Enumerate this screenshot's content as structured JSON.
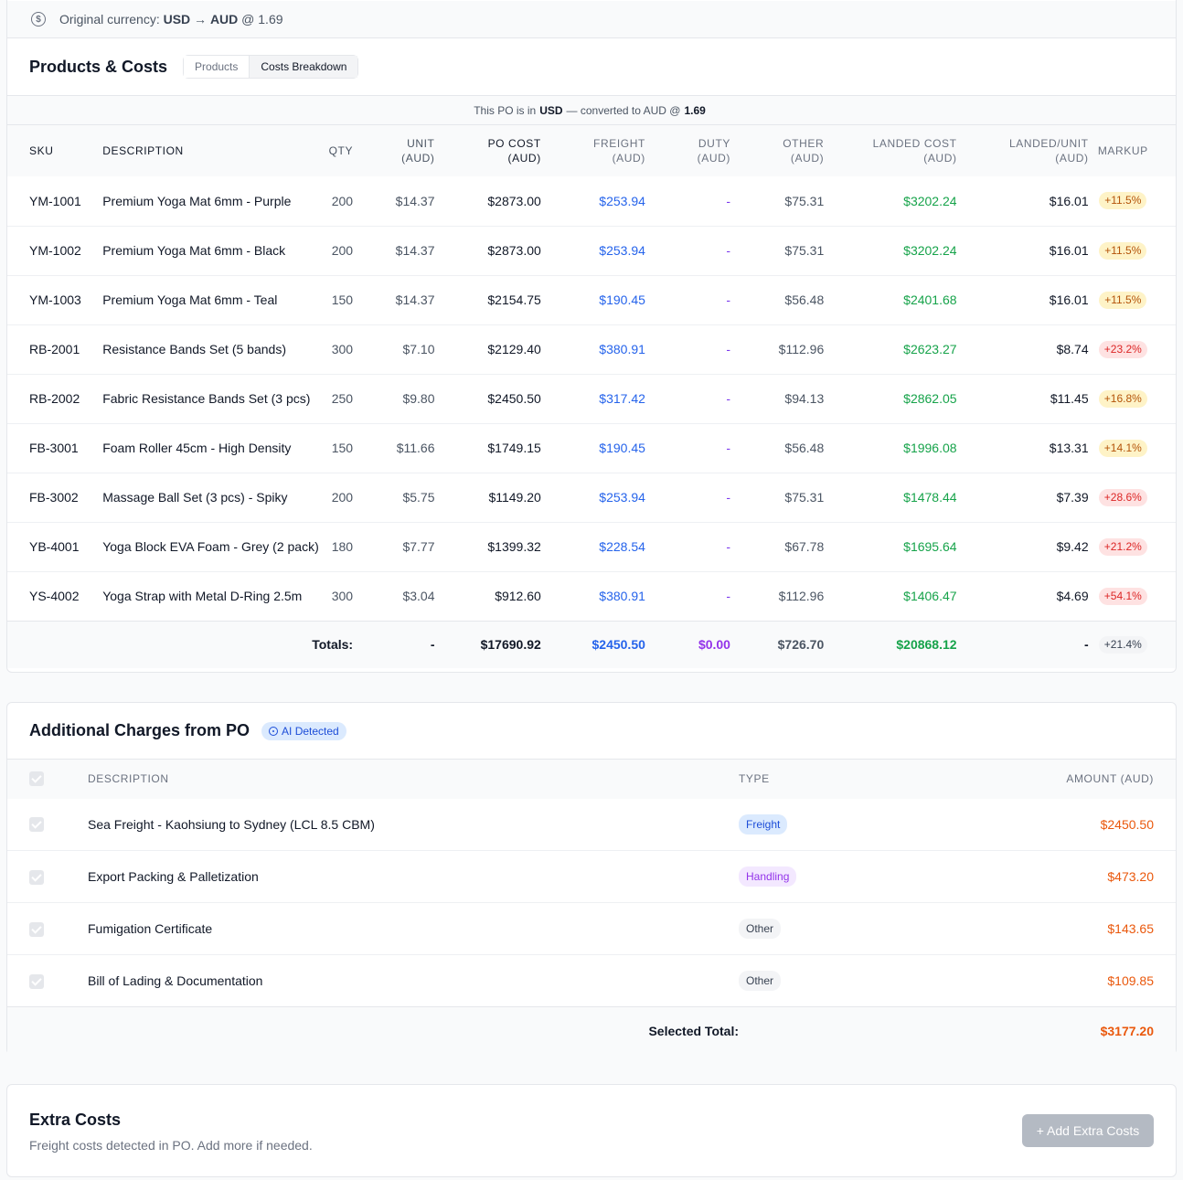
{
  "currency": {
    "prefix": "Original currency:",
    "from": "USD",
    "arrow": "→",
    "to": "AUD",
    "rate_text": "@ 1.69"
  },
  "products": {
    "title": "Products & Costs",
    "tabs": [
      {
        "label": "Products",
        "active": false
      },
      {
        "label": "Costs Breakdown",
        "active": true
      }
    ],
    "note": {
      "prefix": "This PO is in",
      "currency": "USD",
      "middle": "— converted to AUD @",
      "rate": "1.69"
    },
    "columns": {
      "sku": "SKU",
      "description": "DESCRIPTION",
      "qty": "QTY",
      "unit": [
        "UNIT",
        "(AUD)"
      ],
      "po_cost": [
        "PO COST",
        "(AUD)"
      ],
      "freight": [
        "FREIGHT",
        "(AUD)"
      ],
      "duty": [
        "DUTY",
        "(AUD)"
      ],
      "other": [
        "OTHER",
        "(AUD)"
      ],
      "landed": [
        "LANDED COST",
        "(AUD)"
      ],
      "landed_unit": [
        "LANDED/UNIT",
        "(AUD)"
      ],
      "markup": "MARKUP"
    },
    "rows": [
      {
        "sku": "YM-1001",
        "desc": "Premium Yoga Mat 6mm - Purple",
        "qty": "200",
        "unit": "$14.37",
        "po": "$2873.00",
        "freight": "$253.94",
        "duty": "-",
        "other": "$75.31",
        "landed": "$3202.24",
        "lpu": "$16.01",
        "markup": "+11.5%",
        "level": "amber"
      },
      {
        "sku": "YM-1002",
        "desc": "Premium Yoga Mat 6mm - Black",
        "qty": "200",
        "unit": "$14.37",
        "po": "$2873.00",
        "freight": "$253.94",
        "duty": "-",
        "other": "$75.31",
        "landed": "$3202.24",
        "lpu": "$16.01",
        "markup": "+11.5%",
        "level": "amber"
      },
      {
        "sku": "YM-1003",
        "desc": "Premium Yoga Mat 6mm - Teal",
        "qty": "150",
        "unit": "$14.37",
        "po": "$2154.75",
        "freight": "$190.45",
        "duty": "-",
        "other": "$56.48",
        "landed": "$2401.68",
        "lpu": "$16.01",
        "markup": "+11.5%",
        "level": "amber"
      },
      {
        "sku": "RB-2001",
        "desc": "Resistance Bands Set (5 bands)",
        "qty": "300",
        "unit": "$7.10",
        "po": "$2129.40",
        "freight": "$380.91",
        "duty": "-",
        "other": "$112.96",
        "landed": "$2623.27",
        "lpu": "$8.74",
        "markup": "+23.2%",
        "level": "red"
      },
      {
        "sku": "RB-2002",
        "desc": "Fabric Resistance Bands Set (3 pcs)",
        "qty": "250",
        "unit": "$9.80",
        "po": "$2450.50",
        "freight": "$317.42",
        "duty": "-",
        "other": "$94.13",
        "landed": "$2862.05",
        "lpu": "$11.45",
        "markup": "+16.8%",
        "level": "amber"
      },
      {
        "sku": "FB-3001",
        "desc": "Foam Roller 45cm - High Density",
        "qty": "150",
        "unit": "$11.66",
        "po": "$1749.15",
        "freight": "$190.45",
        "duty": "-",
        "other": "$56.48",
        "landed": "$1996.08",
        "lpu": "$13.31",
        "markup": "+14.1%",
        "level": "amber"
      },
      {
        "sku": "FB-3002",
        "desc": "Massage Ball Set (3 pcs) - Spiky",
        "qty": "200",
        "unit": "$5.75",
        "po": "$1149.20",
        "freight": "$253.94",
        "duty": "-",
        "other": "$75.31",
        "landed": "$1478.44",
        "lpu": "$7.39",
        "markup": "+28.6%",
        "level": "red"
      },
      {
        "sku": "YB-4001",
        "desc": "Yoga Block EVA Foam - Grey (2 pack)",
        "qty": "180",
        "unit": "$7.77",
        "po": "$1399.32",
        "freight": "$228.54",
        "duty": "-",
        "other": "$67.78",
        "landed": "$1695.64",
        "lpu": "$9.42",
        "markup": "+21.2%",
        "level": "red"
      },
      {
        "sku": "YS-4002",
        "desc": "Yoga Strap with Metal D-Ring 2.5m",
        "qty": "300",
        "unit": "$3.04",
        "po": "$912.60",
        "freight": "$380.91",
        "duty": "-",
        "other": "$112.96",
        "landed": "$1406.47",
        "lpu": "$4.69",
        "markup": "+54.1%",
        "level": "red"
      }
    ],
    "totals": {
      "label": "Totals:",
      "unit": "-",
      "po": "$17690.92",
      "freight": "$2450.50",
      "duty": "$0.00",
      "other": "$726.70",
      "landed": "$20868.12",
      "lpu": "-",
      "markup": "+21.4%"
    }
  },
  "charges": {
    "title": "Additional Charges from PO",
    "badge": "AI Detected",
    "columns": {
      "description": "DESCRIPTION",
      "type": "TYPE",
      "amount": "AMOUNT (AUD)"
    },
    "rows": [
      {
        "desc": "Sea Freight - Kaohsiung to Sydney (LCL 8.5 CBM)",
        "type": "Freight",
        "kind": "freight",
        "amount": "$2450.50",
        "checked": true
      },
      {
        "desc": "Export Packing & Palletization",
        "type": "Handling",
        "kind": "handling",
        "amount": "$473.20",
        "checked": true
      },
      {
        "desc": "Fumigation Certificate",
        "type": "Other",
        "kind": "other",
        "amount": "$143.65",
        "checked": true
      },
      {
        "desc": "Bill of Lading & Documentation",
        "type": "Other",
        "kind": "other",
        "amount": "$109.85",
        "checked": true
      }
    ],
    "total_label": "Selected Total:",
    "total": "$3177.20"
  },
  "extra": {
    "title": "Extra Costs",
    "subtitle": "Freight costs detected in PO. Add more if needed.",
    "button": "+ Add Extra Costs"
  },
  "colors": {
    "freight": "#2563eb",
    "duty": "#7c3aed",
    "landed": "#16a34a",
    "charge_amount": "#ea580c",
    "markup_amber": "#fef3c7",
    "markup_red": "#fee2e2"
  }
}
